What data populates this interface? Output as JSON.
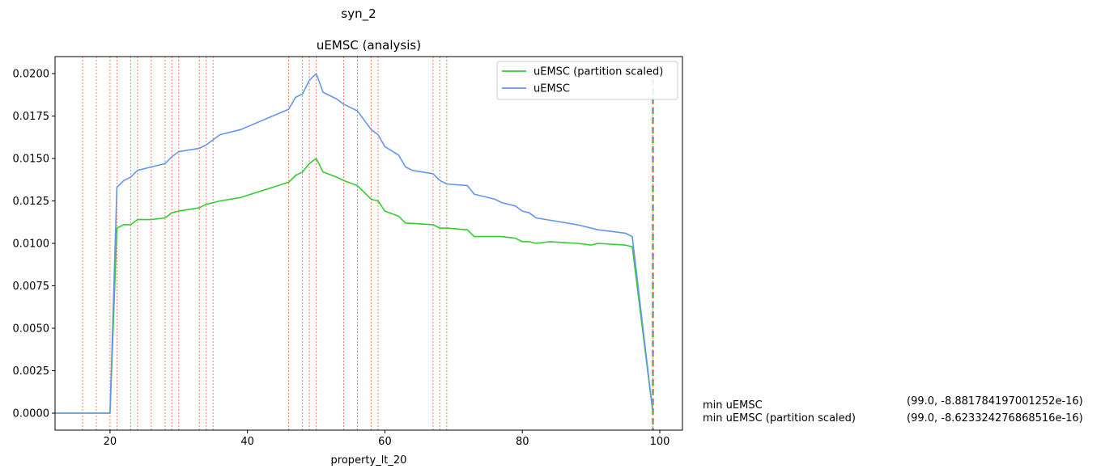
{
  "figure": {
    "suptitle": "syn_2"
  },
  "chart_data": {
    "type": "line",
    "title": "uEMSC (analysis)",
    "xlabel": "property_lt_20",
    "ylabel": "",
    "xlim": [
      12,
      103.3
    ],
    "ylim": [
      -0.001,
      0.021
    ],
    "x_ticks": [
      20,
      40,
      60,
      80,
      100
    ],
    "x_tick_labels": [
      "20",
      "40",
      "60",
      "80",
      "100"
    ],
    "y_ticks": [
      0,
      0.0025,
      0.005,
      0.0075,
      0.01,
      0.0125,
      0.015,
      0.0175,
      0.02
    ],
    "y_tick_labels": [
      "0.0000",
      "0.0025",
      "0.0050",
      "0.0075",
      "0.0100",
      "0.0125",
      "0.0150",
      "0.0175",
      "0.0200"
    ],
    "grid": false,
    "legend_position": "top-right",
    "vertical_lines_x": [
      16,
      18,
      20,
      21,
      23,
      24,
      26,
      28,
      29,
      30,
      33,
      34,
      35,
      46,
      48,
      49,
      50,
      54,
      56,
      58,
      59,
      67,
      68,
      69
    ],
    "min_marker_x": 99,
    "series": [
      {
        "name": "uEMSC (partition scaled)",
        "color": "#32cd32",
        "x": [
          12,
          20,
          21,
          22,
          23,
          24,
          26,
          28,
          29,
          30,
          33,
          34,
          35,
          36,
          39,
          46,
          47,
          48,
          49,
          50,
          51,
          53,
          54,
          56,
          58,
          59,
          60,
          62,
          63,
          67,
          68,
          69,
          72,
          73,
          77,
          79,
          80,
          81,
          82,
          84,
          88,
          90,
          91,
          95,
          96,
          99
        ],
        "y": [
          0,
          0,
          0.0109,
          0.0111,
          0.0111,
          0.0114,
          0.0114,
          0.0115,
          0.0118,
          0.0119,
          0.0121,
          0.0123,
          0.0124,
          0.0125,
          0.0127,
          0.0136,
          0.014,
          0.0142,
          0.0147,
          0.015,
          0.0142,
          0.0139,
          0.0137,
          0.0134,
          0.0126,
          0.0125,
          0.0119,
          0.0116,
          0.0112,
          0.0111,
          0.0109,
          0.0109,
          0.0108,
          0.0104,
          0.0104,
          0.0103,
          0.0101,
          0.0101,
          0.01,
          0.0101,
          0.01,
          0.0099,
          0.01,
          0.0099,
          0.0098,
          0
        ]
      },
      {
        "name": "uEMSC",
        "color": "#6495ed",
        "x": [
          12,
          20,
          21,
          22,
          23,
          24,
          26,
          28,
          29,
          30,
          33,
          34,
          35,
          36,
          39,
          46,
          47,
          48,
          49,
          50,
          51,
          53,
          54,
          56,
          58,
          59,
          60,
          62,
          63,
          64,
          67,
          68,
          69,
          72,
          73,
          76,
          77,
          79,
          80,
          81,
          82,
          88,
          91,
          95,
          96,
          99
        ],
        "y": [
          0,
          0,
          0.0133,
          0.0137,
          0.0139,
          0.0143,
          0.0145,
          0.0147,
          0.0151,
          0.0154,
          0.0156,
          0.0158,
          0.0161,
          0.0164,
          0.0167,
          0.0179,
          0.0186,
          0.0188,
          0.0196,
          0.02,
          0.0189,
          0.0185,
          0.0182,
          0.0178,
          0.0167,
          0.0164,
          0.0157,
          0.0152,
          0.0145,
          0.0143,
          0.0141,
          0.0137,
          0.0135,
          0.0134,
          0.0129,
          0.0126,
          0.0124,
          0.0122,
          0.0119,
          0.0118,
          0.0115,
          0.0111,
          0.0108,
          0.0106,
          0.0104,
          0
        ]
      }
    ],
    "annotations": [
      {
        "label": "min uEMSC",
        "value": "(99.0, -8.881784197001252e-16)"
      },
      {
        "label": "min uEMSC (partition scaled)",
        "value": "(99.0, -8.623324276868516e-16)"
      }
    ]
  }
}
